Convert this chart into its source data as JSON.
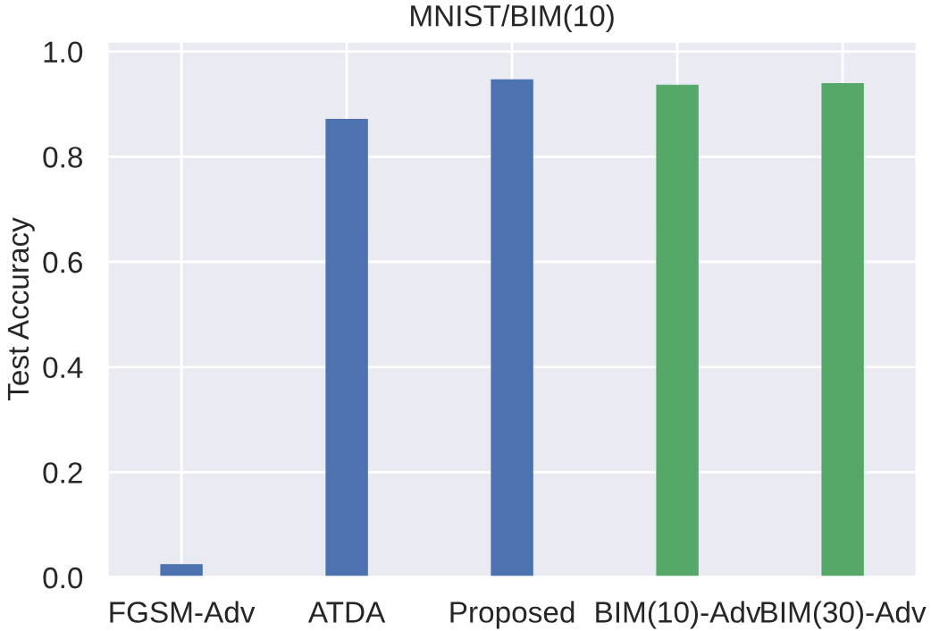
{
  "chart_data": {
    "type": "bar",
    "title": "MNIST/BIM(10)",
    "ylabel": "Test Accuracy",
    "categories": [
      "FGSM-Adv",
      "ATDA",
      "Proposed",
      "BIM(10)-Adv",
      "BIM(30)-Adv"
    ],
    "values": [
      0.024,
      0.871,
      0.946,
      0.936,
      0.939
    ],
    "colors": [
      "#4c72b0",
      "#4c72b0",
      "#4c72b0",
      "#55a868",
      "#55a868"
    ],
    "ylim": [
      0,
      1.02
    ],
    "yticks": [
      {
        "value": 0,
        "label": "0.0"
      },
      0.2,
      0.4,
      0.6,
      0.8,
      {
        "value": 1,
        "label": "1.0"
      }
    ],
    "grid": true
  }
}
